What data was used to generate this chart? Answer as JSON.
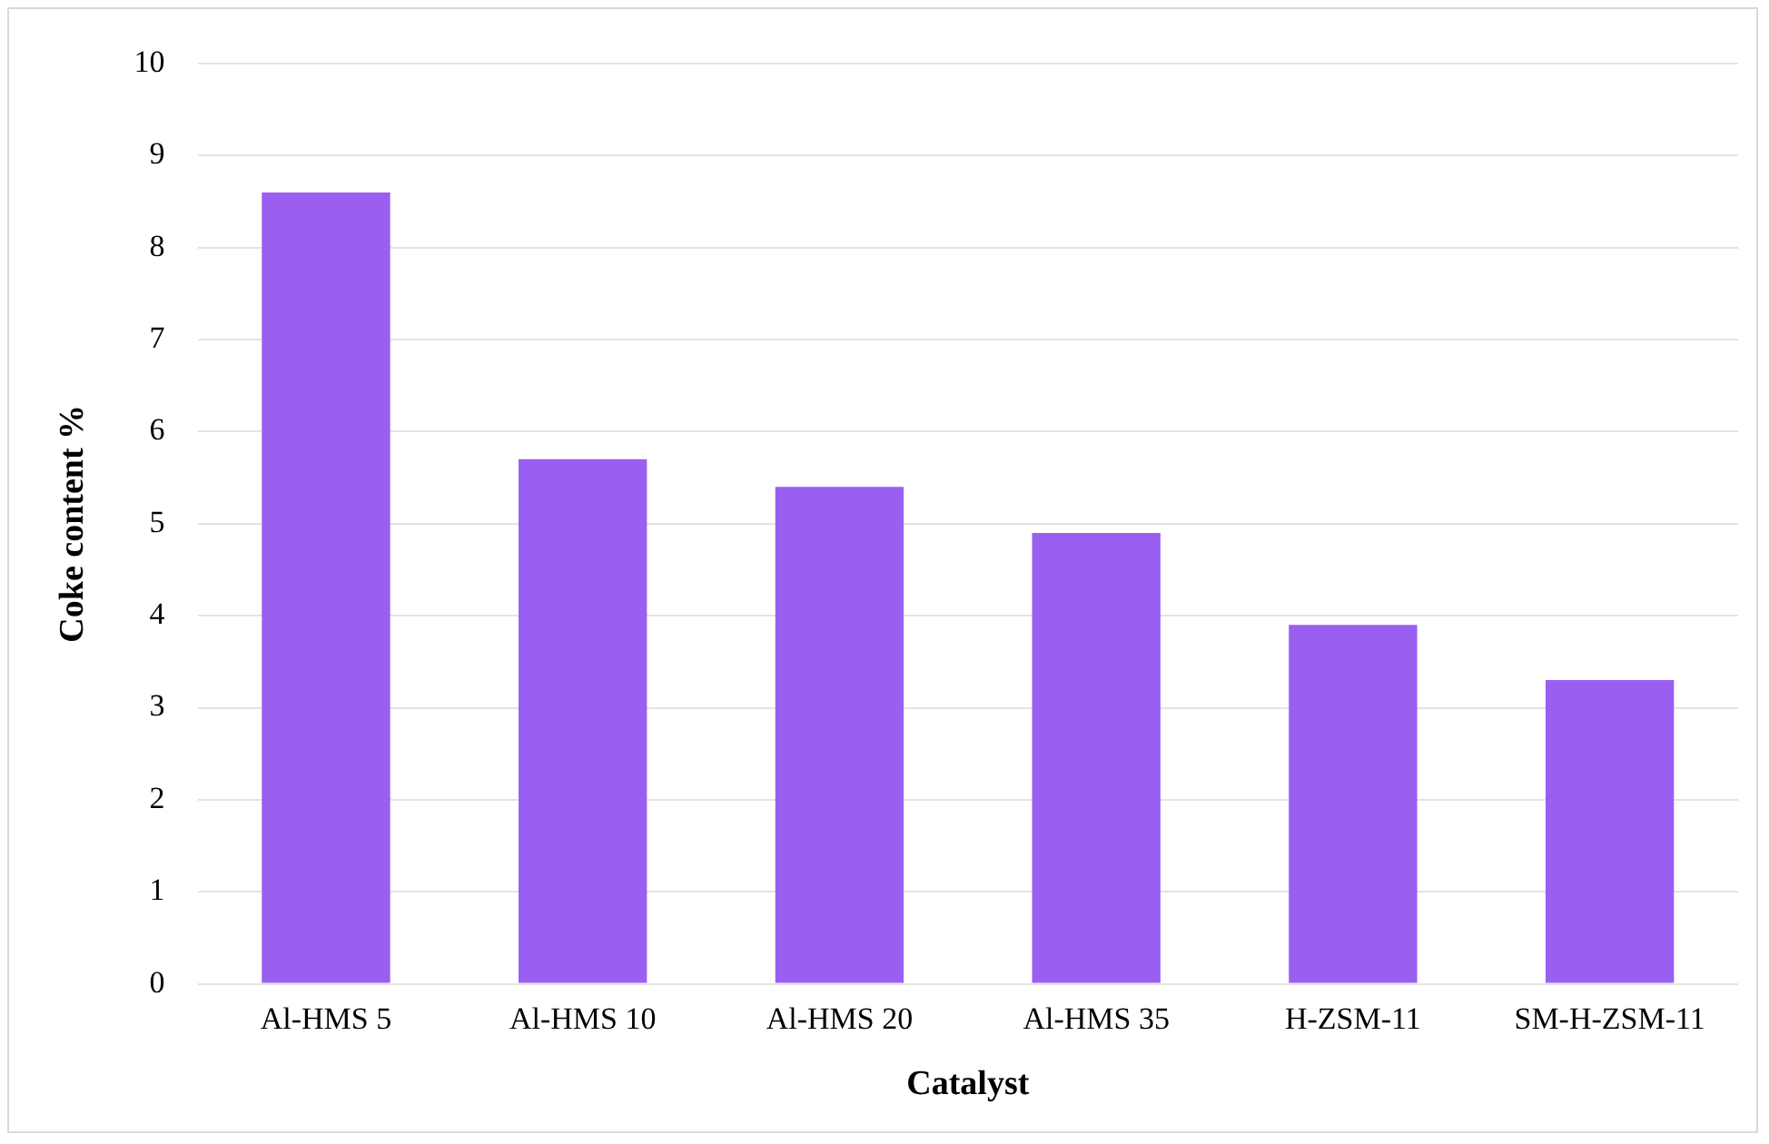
{
  "chart_data": {
    "type": "bar",
    "xlabel": "Catalyst",
    "ylabel": "Coke content %",
    "categories": [
      "Al-HMS 5",
      "Al-HMS 10",
      "Al-HMS 20",
      "Al-HMS 35",
      "H-ZSM-11",
      "SM-H-ZSM-11"
    ],
    "values": [
      8.6,
      5.7,
      5.4,
      4.9,
      3.9,
      3.3
    ],
    "color": "#9a5ff0",
    "ylim": [
      0,
      10
    ],
    "yticks": [
      0,
      1,
      2,
      3,
      4,
      5,
      6,
      7,
      8,
      9,
      10
    ],
    "grid": "y"
  }
}
